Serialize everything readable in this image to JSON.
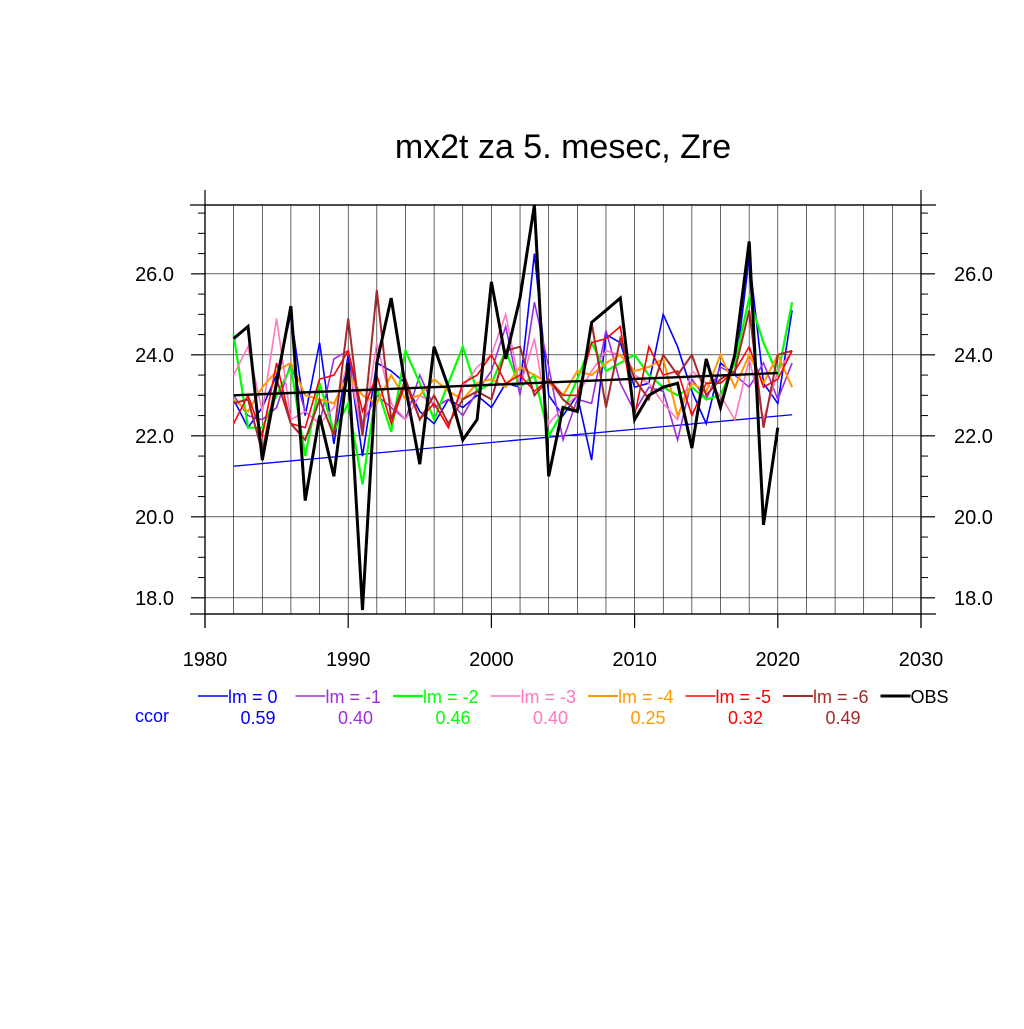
{
  "chart_data": {
    "type": "line",
    "title": "mx2t za 5. mesec, Zre",
    "xlabel": "",
    "ylabel": "",
    "xlim": [
      1980,
      2030
    ],
    "ylim": [
      17.6,
      27.7
    ],
    "x_ticks": [
      1980,
      1990,
      2000,
      2010,
      2020,
      2030
    ],
    "x_tick_labels": [
      "1980",
      "1990",
      "2000",
      "2010",
      "2020",
      "2030"
    ],
    "y_ticks": [
      18,
      20,
      22,
      24,
      26
    ],
    "y_tick_labels": [
      "18.0",
      "20.0",
      "22.0",
      "24.0",
      "26.0"
    ],
    "grid": true,
    "legend_position": "bottom",
    "ccor_label": "ccor",
    "ccor_color": "#0000ff",
    "series": [
      {
        "name": "lm = 0",
        "color": "#0000ff",
        "ccor": "0.59",
        "width": 1.6,
        "x": [
          1982,
          1983,
          1984,
          1985,
          1986,
          1987,
          1988,
          1989,
          1990,
          1991,
          1992,
          1993,
          1994,
          1995,
          1996,
          1997,
          1998,
          1999,
          2000,
          2001,
          2002,
          2003,
          2004,
          2005,
          2006,
          2007,
          2008,
          2009,
          2010,
          2011,
          2012,
          2013,
          2014,
          2015,
          2016,
          2017,
          2018,
          2019,
          2020,
          2021
        ],
        "values": [
          22.9,
          22.2,
          22.7,
          23.5,
          25.0,
          22.5,
          24.3,
          21.8,
          24.0,
          21.5,
          23.8,
          23.6,
          23.3,
          22.6,
          22.3,
          22.9,
          22.7,
          23.0,
          22.7,
          23.3,
          23.2,
          26.5,
          23.0,
          22.5,
          23.0,
          21.4,
          24.5,
          24.3,
          23.2,
          23.3,
          25.0,
          24.2,
          23.1,
          22.3,
          23.8,
          23.5,
          26.4,
          23.3,
          22.8,
          25.1
        ],
        "trend": [
          21.25,
          22.52
        ]
      },
      {
        "name": "lm = -1",
        "color": "#9d2ee0",
        "ccor": "0.40",
        "width": 1.6,
        "x": [
          1982,
          1983,
          1984,
          1985,
          1986,
          1987,
          1988,
          1989,
          1990,
          1991,
          1992,
          1993,
          1994,
          1995,
          1996,
          1997,
          1998,
          1999,
          2000,
          2001,
          2002,
          2003,
          2004,
          2005,
          2006,
          2007,
          2008,
          2009,
          2010,
          2011,
          2012,
          2013,
          2014,
          2015,
          2016,
          2017,
          2018,
          2019,
          2020,
          2021
        ],
        "values": [
          23.0,
          22.5,
          22.4,
          22.7,
          23.8,
          22.6,
          22.3,
          23.9,
          24.1,
          22.3,
          23.0,
          22.7,
          22.4,
          23.5,
          22.7,
          22.9,
          22.5,
          23.1,
          23.6,
          24.7,
          23.0,
          25.3,
          23.7,
          21.9,
          22.9,
          22.8,
          24.6,
          23.3,
          22.6,
          23.2,
          23.1,
          21.9,
          23.4,
          22.9,
          23.7,
          23.5,
          23.2,
          23.8,
          22.9,
          23.8
        ],
        "trend": null
      },
      {
        "name": "lm = -2",
        "color": "#00ff00",
        "ccor": "0.46",
        "width": 2.2,
        "x": [
          1982,
          1983,
          1984,
          1985,
          1986,
          1987,
          1988,
          1989,
          1990,
          1991,
          1992,
          1993,
          1994,
          1995,
          1996,
          1997,
          1998,
          1999,
          2000,
          2001,
          2002,
          2003,
          2004,
          2005,
          2006,
          2007,
          2008,
          2009,
          2010,
          2011,
          2012,
          2013,
          2014,
          2015,
          2016,
          2017,
          2018,
          2019,
          2020,
          2021
        ],
        "values": [
          24.5,
          22.2,
          22.2,
          23.0,
          23.7,
          21.5,
          23.3,
          22.1,
          22.8,
          20.8,
          23.2,
          22.1,
          24.1,
          23.3,
          22.4,
          23.3,
          24.2,
          23.1,
          23.3,
          24.1,
          23.2,
          23.5,
          22.0,
          22.6,
          23.4,
          24.3,
          23.6,
          23.8,
          24.0,
          23.5,
          23.2,
          23.0,
          23.2,
          22.9,
          23.0,
          23.8,
          25.4,
          24.3,
          23.5,
          25.3
        ],
        "trend": null
      },
      {
        "name": "lm = -3",
        "color": "#ff77c0",
        "ccor": "0.40",
        "width": 1.6,
        "x": [
          1982,
          1983,
          1984,
          1985,
          1986,
          1987,
          1988,
          1989,
          1990,
          1991,
          1992,
          1993,
          1994,
          1995,
          1996,
          1997,
          1998,
          1999,
          2000,
          2001,
          2002,
          2003,
          2004,
          2005,
          2006,
          2007,
          2008,
          2009,
          2010,
          2011,
          2012,
          2013,
          2014,
          2015,
          2016,
          2017,
          2018,
          2019,
          2020,
          2021
        ],
        "values": [
          23.5,
          24.2,
          22.6,
          24.9,
          22.4,
          22.6,
          22.3,
          22.7,
          23.8,
          22.0,
          24.3,
          22.8,
          22.4,
          23.0,
          22.8,
          22.2,
          23.2,
          23.7,
          24.0,
          25.0,
          23.2,
          24.4,
          22.3,
          22.7,
          23.0,
          23.6,
          24.1,
          24.0,
          23.5,
          23.3,
          22.8,
          22.4,
          23.6,
          23.3,
          23.0,
          22.4,
          23.9,
          22.4,
          23.6,
          24.1
        ],
        "trend": null
      },
      {
        "name": "lm = -4",
        "color": "#ff9900",
        "ccor": "0.25",
        "width": 2.0,
        "x": [
          1982,
          1983,
          1984,
          1985,
          1986,
          1987,
          1988,
          1989,
          1990,
          1991,
          1992,
          1993,
          1994,
          1995,
          1996,
          1997,
          1998,
          1999,
          2000,
          2001,
          2002,
          2003,
          2004,
          2005,
          2006,
          2007,
          2008,
          2009,
          2010,
          2011,
          2012,
          2013,
          2014,
          2015,
          2016,
          2017,
          2018,
          2019,
          2020,
          2021
        ],
        "values": [
          22.9,
          22.6,
          23.2,
          23.6,
          23.8,
          23.0,
          22.9,
          22.8,
          23.5,
          23.0,
          22.8,
          23.5,
          22.9,
          23.0,
          23.4,
          23.1,
          22.9,
          23.3,
          23.4,
          23.2,
          23.7,
          23.5,
          23.3,
          23.0,
          23.6,
          23.5,
          23.8,
          24.0,
          23.6,
          23.7,
          23.9,
          22.5,
          23.3,
          23.1,
          24.0,
          23.2,
          24.0,
          23.3,
          24.0,
          23.2
        ],
        "trend": null
      },
      {
        "name": "lm = -5",
        "color": "#ff0000",
        "ccor": "0.32",
        "width": 1.6,
        "x": [
          1982,
          1983,
          1984,
          1985,
          1986,
          1987,
          1988,
          1989,
          1990,
          1991,
          1992,
          1993,
          1994,
          1995,
          1996,
          1997,
          1998,
          1999,
          2000,
          2001,
          2002,
          2003,
          2004,
          2005,
          2006,
          2007,
          2008,
          2009,
          2010,
          2011,
          2012,
          2013,
          2014,
          2015,
          2016,
          2017,
          2018,
          2019,
          2020,
          2021
        ],
        "values": [
          22.3,
          23.0,
          22.0,
          23.8,
          22.3,
          22.2,
          23.4,
          23.5,
          24.1,
          22.6,
          23.5,
          22.3,
          23.3,
          22.4,
          22.8,
          22.2,
          23.3,
          23.5,
          24.0,
          23.3,
          23.5,
          23.1,
          23.4,
          23.0,
          23.0,
          24.3,
          24.4,
          24.7,
          22.5,
          24.2,
          23.5,
          23.6,
          22.5,
          23.3,
          23.3,
          23.6,
          24.2,
          23.2,
          23.4,
          24.1
        ],
        "trend": null
      },
      {
        "name": "lm = -6",
        "color": "#a52a2a",
        "ccor": "0.49",
        "width": 2.0,
        "x": [
          1982,
          1983,
          1984,
          1985,
          1986,
          1987,
          1988,
          1989,
          1990,
          1991,
          1992,
          1993,
          1994,
          1995,
          1996,
          1997,
          1998,
          1999,
          2000,
          2001,
          2002,
          2003,
          2004,
          2005,
          2006,
          2007,
          2008,
          2009,
          2010,
          2011,
          2012,
          2013,
          2014,
          2015,
          2016,
          2017,
          2018,
          2019,
          2020,
          2021
        ],
        "values": [
          22.8,
          22.9,
          21.6,
          23.4,
          22.3,
          21.9,
          22.9,
          22.0,
          24.9,
          22.0,
          25.6,
          22.4,
          23.4,
          22.4,
          23.0,
          22.3,
          22.9,
          23.1,
          22.9,
          24.1,
          24.2,
          23.0,
          23.4,
          22.9,
          22.6,
          24.8,
          22.7,
          24.4,
          23.4,
          22.9,
          24.0,
          23.5,
          24.0,
          23.0,
          23.4,
          23.6,
          25.1,
          22.2,
          24.0,
          24.1
        ],
        "trend": null
      },
      {
        "name": "OBS",
        "color": "#000000",
        "ccor": "",
        "width": 3.0,
        "x": [
          1982,
          1983,
          1984,
          1985,
          1986,
          1987,
          1988,
          1989,
          1990,
          1991,
          1992,
          1993,
          1994,
          1995,
          1996,
          1997,
          1998,
          1999,
          2000,
          2001,
          2002,
          2003,
          2004,
          2005,
          2006,
          2007,
          2008,
          2009,
          2010,
          2011,
          2012,
          2013,
          2014,
          2015,
          2016,
          2017,
          2018,
          2019,
          2020
        ],
        "values": [
          24.4,
          24.7,
          21.4,
          23.3,
          25.2,
          20.4,
          22.5,
          21.0,
          23.8,
          17.7,
          23.8,
          25.4,
          23.2,
          21.3,
          24.2,
          23.2,
          21.9,
          22.4,
          25.8,
          23.9,
          25.4,
          27.7,
          21.0,
          22.7,
          22.6,
          24.8,
          25.1,
          25.4,
          22.4,
          23.0,
          23.2,
          23.3,
          21.7,
          23.9,
          22.7,
          24.0,
          26.8,
          19.8,
          22.2
        ],
        "trend": [
          23.0,
          23.55
        ]
      }
    ]
  }
}
